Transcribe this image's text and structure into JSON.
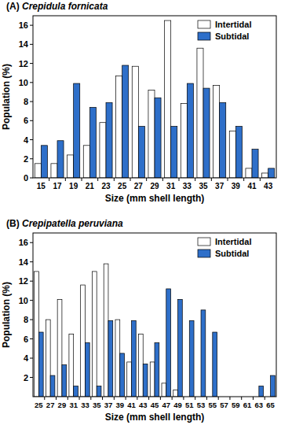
{
  "chart_data": [
    {
      "type": "bar",
      "title": "(A) Crepidula fornicata",
      "x_label": "Size (mm shell length)",
      "y_label": "Population (%)",
      "categories": [
        "15",
        "17",
        "19",
        "21",
        "23",
        "25",
        "27",
        "29",
        "31",
        "33",
        "35",
        "37",
        "39",
        "41",
        "43"
      ],
      "series": [
        {
          "name": "Intertidal",
          "color": "#ffffff",
          "values": [
            1.5,
            1.5,
            2.4,
            3.4,
            5.8,
            10.7,
            11.7,
            9.2,
            16.5,
            7.8,
            13.6,
            9.7,
            4.9,
            1.0,
            0.5
          ]
        },
        {
          "name": "Subtidal",
          "color": "#2e6fc9",
          "values": [
            3.4,
            3.9,
            9.9,
            7.4,
            7.9,
            11.8,
            5.4,
            8.4,
            5.4,
            9.9,
            9.4,
            7.9,
            5.4,
            3.0,
            1.0
          ]
        }
      ],
      "ylim": [
        0,
        17
      ],
      "yticks": [
        0,
        2,
        4,
        6,
        8,
        10,
        12,
        14,
        16
      ],
      "legend": "upper right"
    },
    {
      "type": "bar",
      "title": "(B) Crepipatella peruviana",
      "x_label": "Size (mm shell length)",
      "y_label": "Population (%)",
      "categories": [
        "25",
        "27",
        "29",
        "31",
        "33",
        "35",
        "37",
        "39",
        "41",
        "43",
        "45",
        "47",
        "49",
        "51",
        "53",
        "55",
        "57",
        "59",
        "61",
        "63",
        "65"
      ],
      "series": [
        {
          "name": "Intertidal",
          "color": "#ffffff",
          "values": [
            13.0,
            8.0,
            10.1,
            6.5,
            11.6,
            13.0,
            13.8,
            8.0,
            3.6,
            6.5,
            3.6,
            1.4,
            0.7,
            0,
            0,
            0,
            0,
            0,
            0,
            0,
            0
          ]
        },
        {
          "name": "Subtidal",
          "color": "#2e6fc9",
          "values": [
            6.7,
            2.2,
            3.3,
            1.1,
            5.6,
            1.1,
            7.9,
            4.5,
            7.9,
            3.4,
            5.6,
            11.2,
            10.1,
            7.9,
            9.0,
            6.7,
            0,
            0,
            0,
            1.1,
            2.2
          ]
        }
      ],
      "ylim": [
        0,
        17
      ],
      "yticks": [
        2,
        4,
        6,
        8,
        10,
        12,
        14,
        16
      ],
      "legend": "upper right"
    }
  ]
}
